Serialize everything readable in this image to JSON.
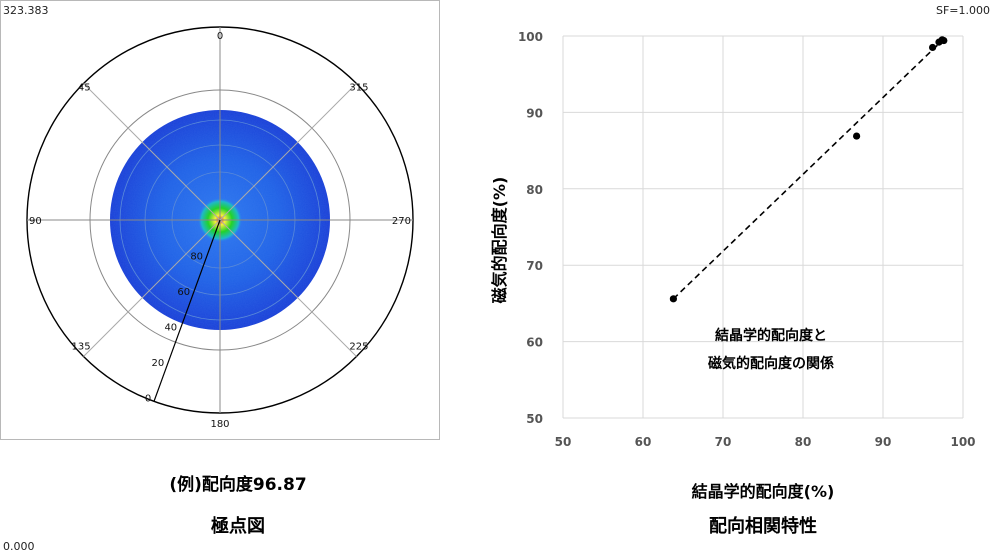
{
  "pole_figure": {
    "max_value": "323.383",
    "min_value": "0.000",
    "scale_factor": "SF=1.000",
    "angle_labels": [
      {
        "deg": 0,
        "text": "0"
      },
      {
        "deg": 45,
        "text": "45"
      },
      {
        "deg": 90,
        "text": "90"
      },
      {
        "deg": 135,
        "text": "135"
      },
      {
        "deg": 180,
        "text": "180"
      },
      {
        "deg": 225,
        "text": "225"
      },
      {
        "deg": 270,
        "text": "270"
      },
      {
        "deg": 315,
        "text": "315"
      }
    ],
    "radial_labels": [
      "80",
      "60",
      "40",
      "20",
      "0"
    ],
    "colors": {
      "outer": "#1a3fd6",
      "mid": "#2f7bf0",
      "core_green": "#22d22a",
      "core_yellow": "#f6f23a",
      "core_red": "#e8341c"
    },
    "caption_value": "(例)配向度96.87",
    "caption_title": "極点図"
  },
  "chart_data": {
    "type": "scatter",
    "title": "",
    "xlabel": "結晶学的配向度(%)",
    "ylabel": "磁気的配向度(%)",
    "xlim": [
      50,
      100
    ],
    "ylim": [
      50,
      100
    ],
    "xticks": [
      "50",
      "60",
      "70",
      "80",
      "90",
      "100"
    ],
    "yticks": [
      "50",
      "60",
      "70",
      "80",
      "90",
      "100"
    ],
    "grid": true,
    "points": [
      {
        "x": 63.8,
        "y": 65.6
      },
      {
        "x": 86.7,
        "y": 86.9
      },
      {
        "x": 96.2,
        "y": 98.5
      },
      {
        "x": 97.0,
        "y": 99.2
      },
      {
        "x": 97.4,
        "y": 99.5
      },
      {
        "x": 97.6,
        "y": 99.4
      }
    ],
    "trendline": {
      "style": "dashed",
      "from": [
        63.8,
        65.6
      ],
      "to": [
        97.6,
        99.6
      ]
    },
    "annotation": [
      "結晶学的配向度と",
      "磁気的配向度の関係"
    ],
    "caption_title": "配向相関特性"
  }
}
